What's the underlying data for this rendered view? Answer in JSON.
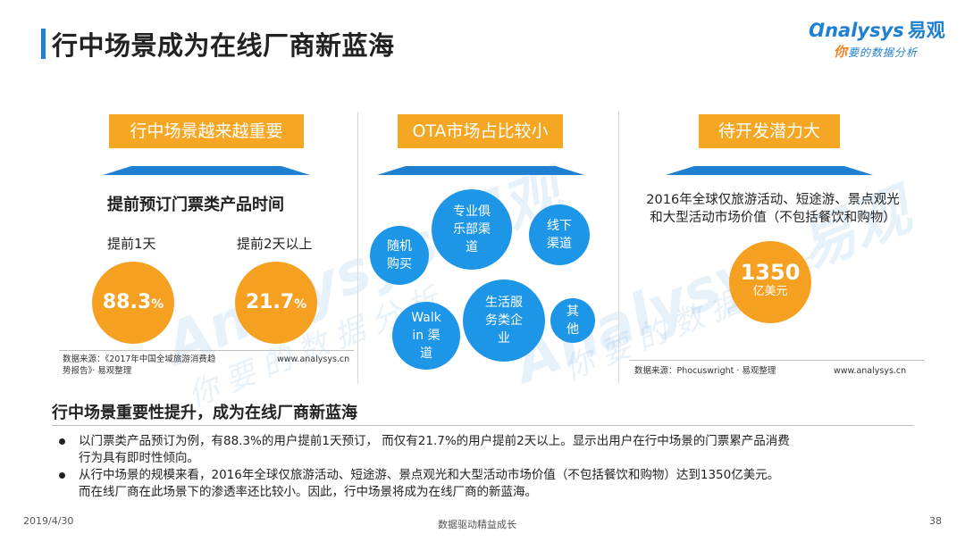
{
  "header": {
    "title": "行中场景成为在线厂商新蓝海"
  },
  "logo": {
    "brand": "nalysys",
    "brand_cn": "易观",
    "tagline_first": "你",
    "tagline_rest": "要的数据分析"
  },
  "watermark": {
    "brand": "Analysys 易观",
    "tagline": "你要的数据分析"
  },
  "panel1": {
    "header": "行中场景越来越重要",
    "subtitle": "提前预订门票类产品时间",
    "items": [
      {
        "label": "提前1天",
        "value": "88.3",
        "unit": "%"
      },
      {
        "label": "提前2天以上",
        "value": "21.7",
        "unit": "%"
      }
    ],
    "source_line1": "数据来源：《2017年中国全域旅游消费趋",
    "source_line2": "势报告》· 易观整理",
    "source_url": "www.analysys.cn"
  },
  "panel2": {
    "header": "OTA市场占比较小",
    "bubbles": [
      "随机\n购买",
      "专业俱\n乐部渠\n道",
      "线下\n渠道",
      "Walk\nin 渠\n道",
      "生活服\n务类企\n业",
      "其\n他"
    ]
  },
  "panel3": {
    "header": "待开发潜力大",
    "desc_line1": "2016年全球仅旅游活动、短途游、景点观光",
    "desc_line2": "和大型活动市场价值（不包括餐饮和购物）",
    "value": "1350",
    "unit": "亿美元",
    "source": "数据来源：Phocuswright · 易观整理",
    "source_url": "www.analysys.cn"
  },
  "summary": {
    "title": "行中场景重要性提升，成为在线厂商新蓝海",
    "bullet1_line1": "以门票类产品预订为例，有88.3%的用户提前1天预订，  而仅有21.7%的用户提前2天以上。显示出用户在行中场景的门票累产品消费",
    "bullet1_line2": "行为具有即时性倾向。",
    "bullet2_line1": "从行中场景的规模来看，2016年全球仅旅游活动、短途游、景点观光和大型活动市场价值（不包括餐饮和购物）达到1350亿美元。",
    "bullet2_line2": "而在线厂商在此场景下的渗透率还比较小。因此，行中场景将成为在线厂商的新蓝海。"
  },
  "footer": {
    "date": "2019/4/30",
    "center": "数据驱动精益成长",
    "page": "38"
  },
  "colors": {
    "accent_blue": "#1f7fd0",
    "bubble_blue": "#1e96e8",
    "orange": "#f5a623"
  }
}
